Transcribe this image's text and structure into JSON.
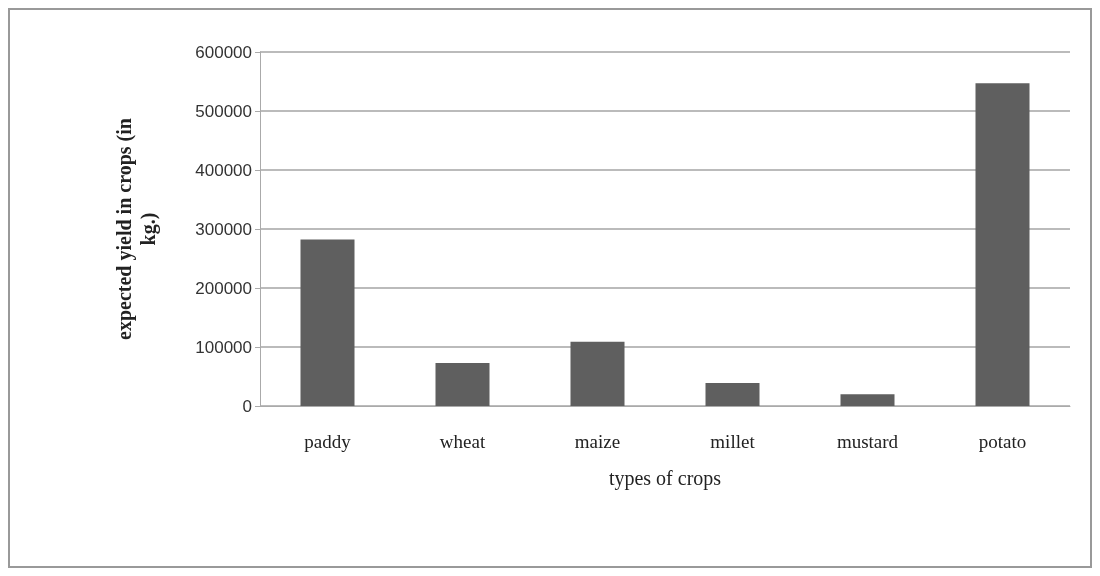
{
  "chart_data": {
    "type": "bar",
    "xlabel": "types of crops",
    "ylabel": "expected yield in crops (in\nkg.)",
    "categories": [
      "paddy",
      "wheat",
      "maize",
      "millet",
      "mustard",
      "potato"
    ],
    "values": [
      282000,
      73000,
      109000,
      39000,
      20000,
      547000
    ],
    "color": "#5f5f5f",
    "ylim": [
      0,
      600000
    ],
    "yticks": [
      0,
      100000,
      200000,
      300000,
      400000,
      500000,
      600000
    ],
    "grid": "y"
  }
}
